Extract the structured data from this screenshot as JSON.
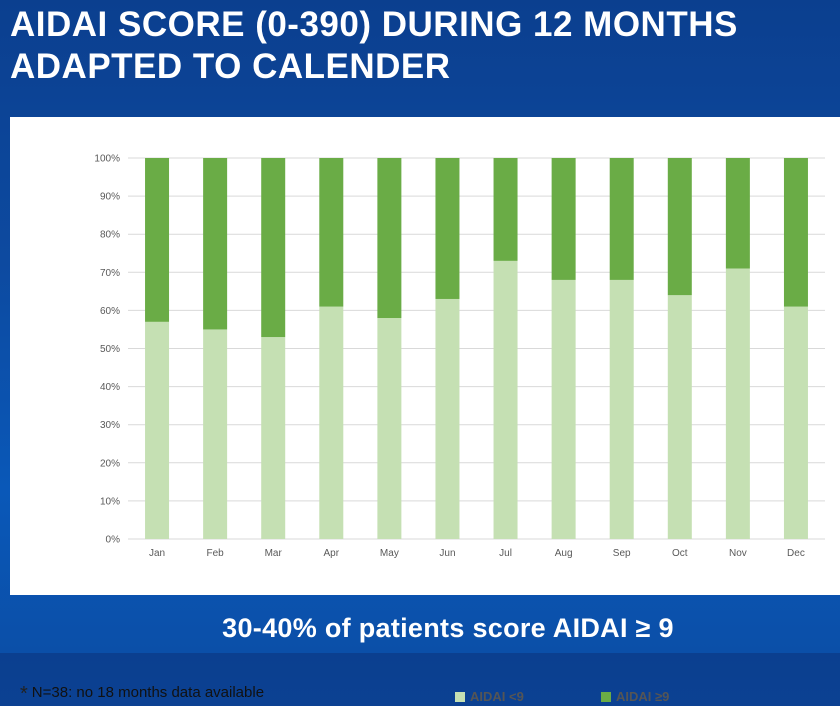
{
  "slide": {
    "title_line1": "AIDAI SCORE (0-390) DURING 12 MONTHS",
    "title_line2": "ADAPTED TO CALENDER",
    "footnote_marker": "*",
    "footnote": "N=38: no 18 months data available",
    "conclusion": "30-40% of patients score AIDAI ≥ 9"
  },
  "colors": {
    "low": "#c5e0b3",
    "high": "#6aac46",
    "grid": "#d9d9d9",
    "tick": "#595959"
  },
  "chart_data": {
    "type": "bar",
    "stacked": true,
    "percent_stacked": true,
    "title": "",
    "xlabel": "",
    "ylabel": "",
    "ylim": [
      0,
      100
    ],
    "y_ticks": [
      "0%",
      "10%",
      "20%",
      "30%",
      "40%",
      "50%",
      "60%",
      "70%",
      "80%",
      "90%",
      "100%"
    ],
    "categories": [
      "Jan",
      "Feb",
      "Mar",
      "Apr",
      "May",
      "Jun",
      "Jul",
      "Aug",
      "Sep",
      "Oct",
      "Nov",
      "Dec"
    ],
    "series": [
      {
        "name": "AIDAI <9",
        "values": [
          57,
          55,
          53,
          61,
          58,
          63,
          73,
          68,
          68,
          64,
          71,
          61
        ]
      },
      {
        "name": "AIDAI ≥9",
        "values": [
          43,
          45,
          47,
          39,
          42,
          37,
          27,
          32,
          32,
          36,
          29,
          39
        ]
      }
    ],
    "legend_position": "bottom",
    "grid": true
  }
}
